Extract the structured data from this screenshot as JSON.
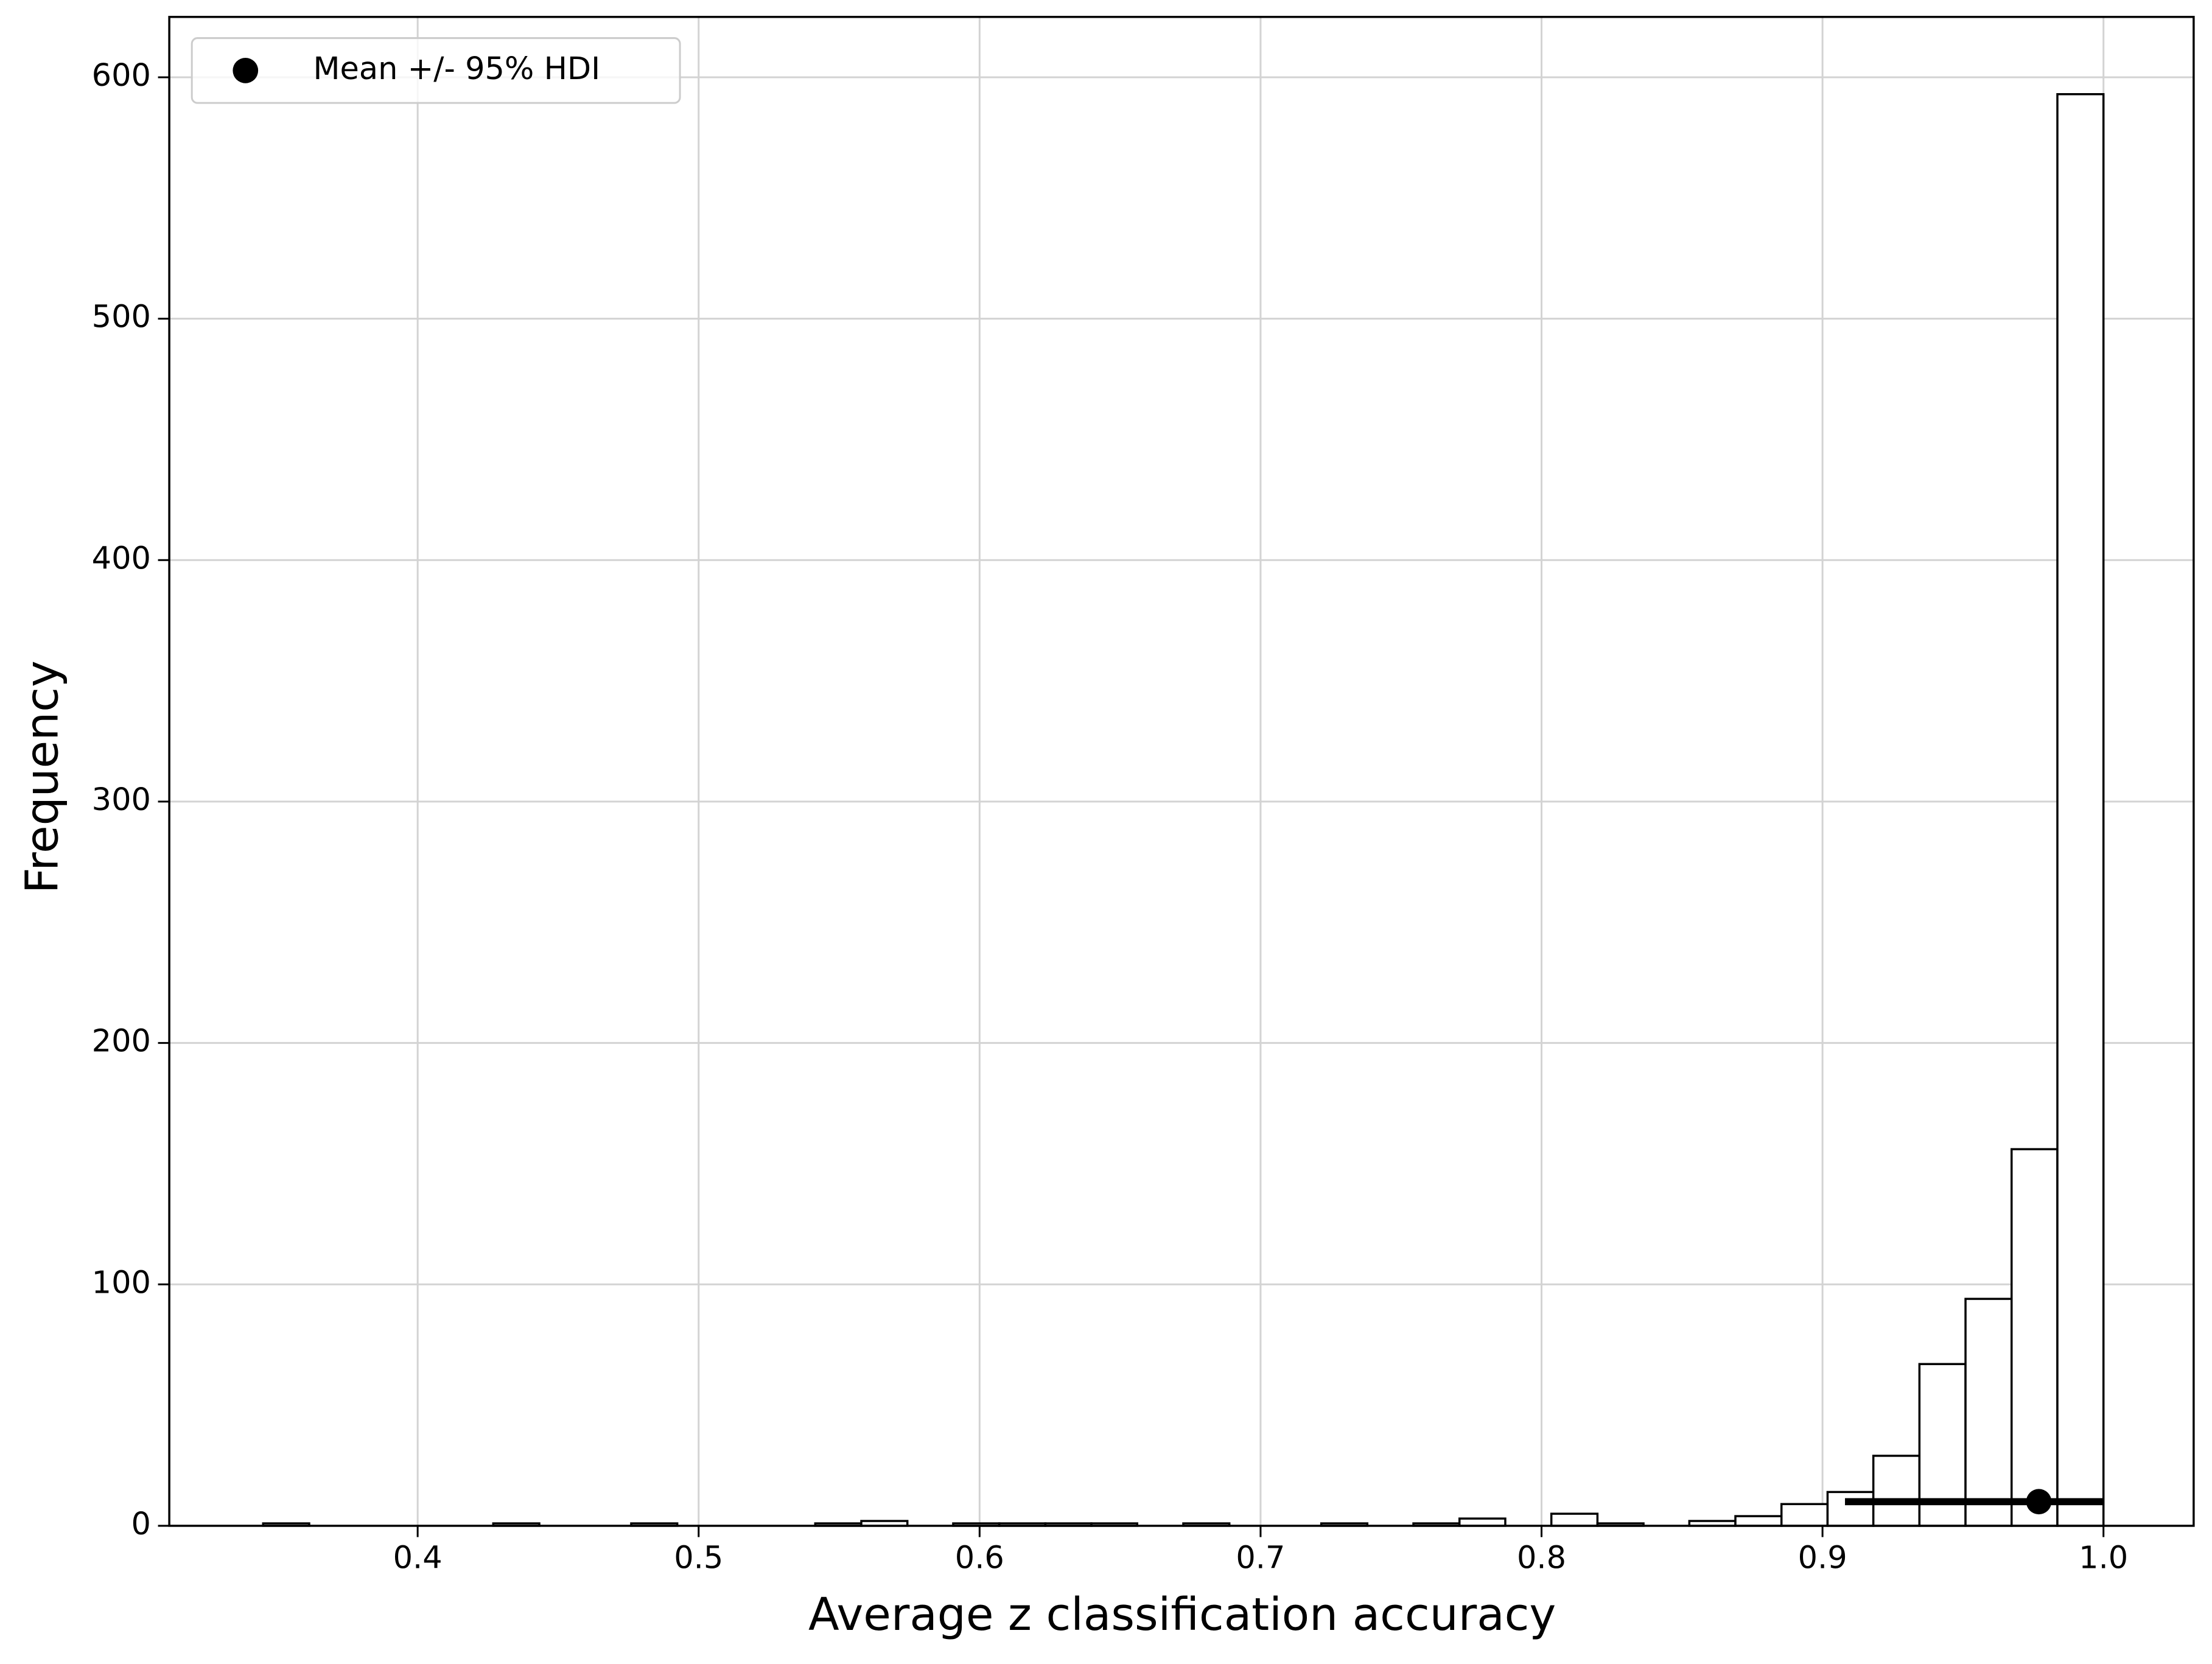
{
  "chart_data": {
    "type": "histogram",
    "xlabel": "Average z classification accuracy",
    "ylabel": "Frequency",
    "bins": [
      0.345,
      0.3614,
      0.3778,
      0.3941,
      0.4105,
      0.4269,
      0.4433,
      0.4596,
      0.476,
      0.4924,
      0.5088,
      0.5251,
      0.5415,
      0.5579,
      0.5743,
      0.5906,
      0.607,
      0.6234,
      0.6398,
      0.6561,
      0.6725,
      0.6889,
      0.7053,
      0.7216,
      0.738,
      0.7544,
      0.7708,
      0.7871,
      0.8035,
      0.8199,
      0.8363,
      0.8526,
      0.869,
      0.8854,
      0.9018,
      0.9181,
      0.9345,
      0.9509,
      0.9673,
      0.9836,
      1.0
    ],
    "values": [
      1,
      0,
      0,
      0,
      0,
      1,
      0,
      0,
      1,
      0,
      0,
      0,
      1,
      2,
      0,
      1,
      1,
      1,
      1,
      0,
      1,
      0,
      0,
      1,
      0,
      1,
      3,
      0,
      5,
      1,
      0,
      2,
      4,
      9,
      14,
      29,
      67,
      94,
      156,
      593
    ],
    "color": "#ffffff",
    "edgecolor": "#000000",
    "mean": {
      "name": "Mean +/- 95% HDI",
      "x": 0.977,
      "y": 10,
      "hdi": [
        0.908,
        1.0
      ],
      "color": "#000000"
    },
    "legend": "upper left",
    "grid": true,
    "xlim": [
      0.3116,
      1.0321
    ],
    "ylim": [
      0,
      625
    ],
    "xticks": [
      0.4,
      0.5,
      0.6,
      0.7,
      0.8,
      0.9,
      {
        "value": 1.0,
        "label": "1.0"
      }
    ],
    "yticks": [
      0,
      100,
      200,
      300,
      400,
      500,
      600
    ]
  }
}
